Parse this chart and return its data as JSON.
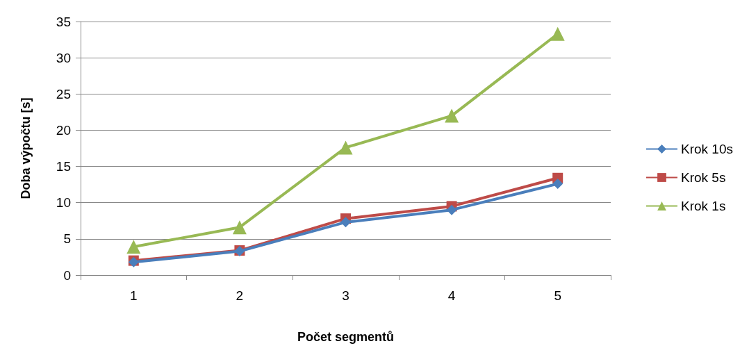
{
  "chart_data": {
    "type": "line",
    "xlabel": "Počet segmentů",
    "ylabel": "Doba výpočtu [s]",
    "categories": [
      "1",
      "2",
      "3",
      "4",
      "5"
    ],
    "series": [
      {
        "name": "Krok 10s",
        "color": "#4a7ebb",
        "marker": "diamond",
        "values": [
          1.8,
          3.3,
          7.3,
          9.0,
          12.6
        ]
      },
      {
        "name": "Krok 5s",
        "color": "#be4b48",
        "marker": "square",
        "values": [
          2.0,
          3.4,
          7.8,
          9.5,
          13.4
        ]
      },
      {
        "name": "Krok 1s",
        "color": "#98b954",
        "marker": "triangle",
        "values": [
          3.9,
          6.6,
          17.6,
          22.0,
          33.3
        ]
      }
    ],
    "ylim": [
      0,
      35
    ],
    "yticks": [
      0,
      5,
      10,
      15,
      20,
      25,
      30,
      35
    ],
    "grid": "y",
    "legend": "right"
  }
}
